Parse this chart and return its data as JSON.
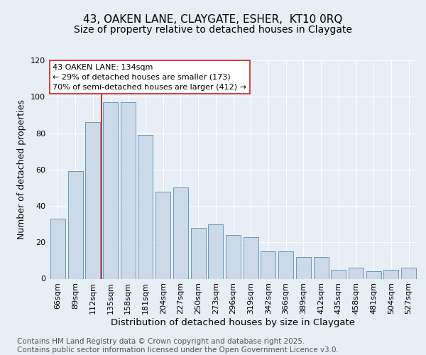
{
  "title": "43, OAKEN LANE, CLAYGATE, ESHER,  KT10 0RQ",
  "subtitle": "Size of property relative to detached houses in Claygate",
  "xlabel": "Distribution of detached houses by size in Claygate",
  "ylabel": "Number of detached properties",
  "categories": [
    "66sqm",
    "89sqm",
    "112sqm",
    "135sqm",
    "158sqm",
    "181sqm",
    "204sqm",
    "227sqm",
    "250sqm",
    "273sqm",
    "296sqm",
    "319sqm",
    "342sqm",
    "366sqm",
    "389sqm",
    "412sqm",
    "435sqm",
    "458sqm",
    "481sqm",
    "504sqm",
    "527sqm"
  ],
  "bar_heights": [
    33,
    59,
    86,
    97,
    97,
    79,
    48,
    50,
    28,
    30,
    24,
    23,
    15,
    15,
    12,
    12,
    5,
    6,
    4,
    5,
    6
  ],
  "bar_color": "#ccd9e8",
  "bar_edge_color": "#6699bb",
  "vline_color": "#cc2222",
  "vline_x": 3.0,
  "annotation_line1": "43 OAKEN LANE: 134sqm",
  "annotation_line2": "← 29% of detached houses are smaller (173)",
  "annotation_line3": "70% of semi-detached houses are larger (412) →",
  "ylim": [
    0,
    120
  ],
  "yticks": [
    0,
    20,
    40,
    60,
    80,
    100,
    120
  ],
  "background_color": "#e8eef6",
  "title_fontsize": 11,
  "subtitle_fontsize": 10,
  "axis_label_fontsize": 9,
  "tick_fontsize": 8,
  "annotation_fontsize": 8,
  "footer": "Contains HM Land Registry data © Crown copyright and database right 2025.\nContains public sector information licensed under the Open Government Licence v3.0.",
  "footer_fontsize": 7.5
}
